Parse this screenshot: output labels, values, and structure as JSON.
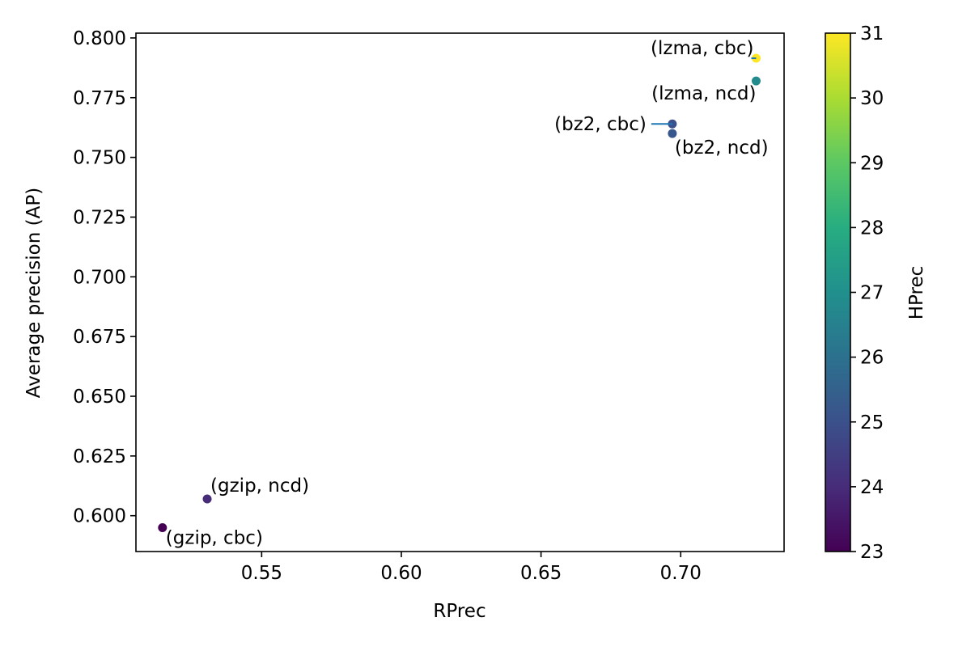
{
  "chart_data": {
    "type": "scatter",
    "title": "",
    "xlabel": "RPrec",
    "ylabel": "Average precision (AP)",
    "colorbar_label": "HPrec",
    "xlim": [
      0.505,
      0.737
    ],
    "ylim": [
      0.585,
      0.802
    ],
    "clim": [
      23,
      31
    ],
    "x_ticks": [
      "0.55",
      "0.60",
      "0.65",
      "0.70"
    ],
    "y_ticks": [
      "0.600",
      "0.625",
      "0.650",
      "0.675",
      "0.700",
      "0.725",
      "0.750",
      "0.775",
      "0.800"
    ],
    "colorbar_ticks": [
      "23",
      "24",
      "25",
      "26",
      "27",
      "28",
      "29",
      "30",
      "31"
    ],
    "colormap": [
      "#440154",
      "#472c7a",
      "#3b518b",
      "#2c718e",
      "#21908d",
      "#27ad81",
      "#5cc863",
      "#aadc32",
      "#fde725"
    ],
    "grid": false,
    "points": [
      {
        "label": "(gzip, cbc)",
        "x": 0.5145,
        "y": 0.595,
        "c": 23.0
      },
      {
        "label": "(gzip, ncd)",
        "x": 0.5305,
        "y": 0.607,
        "c": 24.0
      },
      {
        "label": "(bz2, cbc)",
        "x": 0.697,
        "y": 0.764,
        "c": 25.0
      },
      {
        "label": "(bz2, ncd)",
        "x": 0.697,
        "y": 0.76,
        "c": 25.2
      },
      {
        "label": "(lzma, ncd)",
        "x": 0.727,
        "y": 0.782,
        "c": 26.8
      },
      {
        "label": "(lzma, cbc)",
        "x": 0.727,
        "y": 0.7915,
        "c": 31.0
      }
    ]
  }
}
